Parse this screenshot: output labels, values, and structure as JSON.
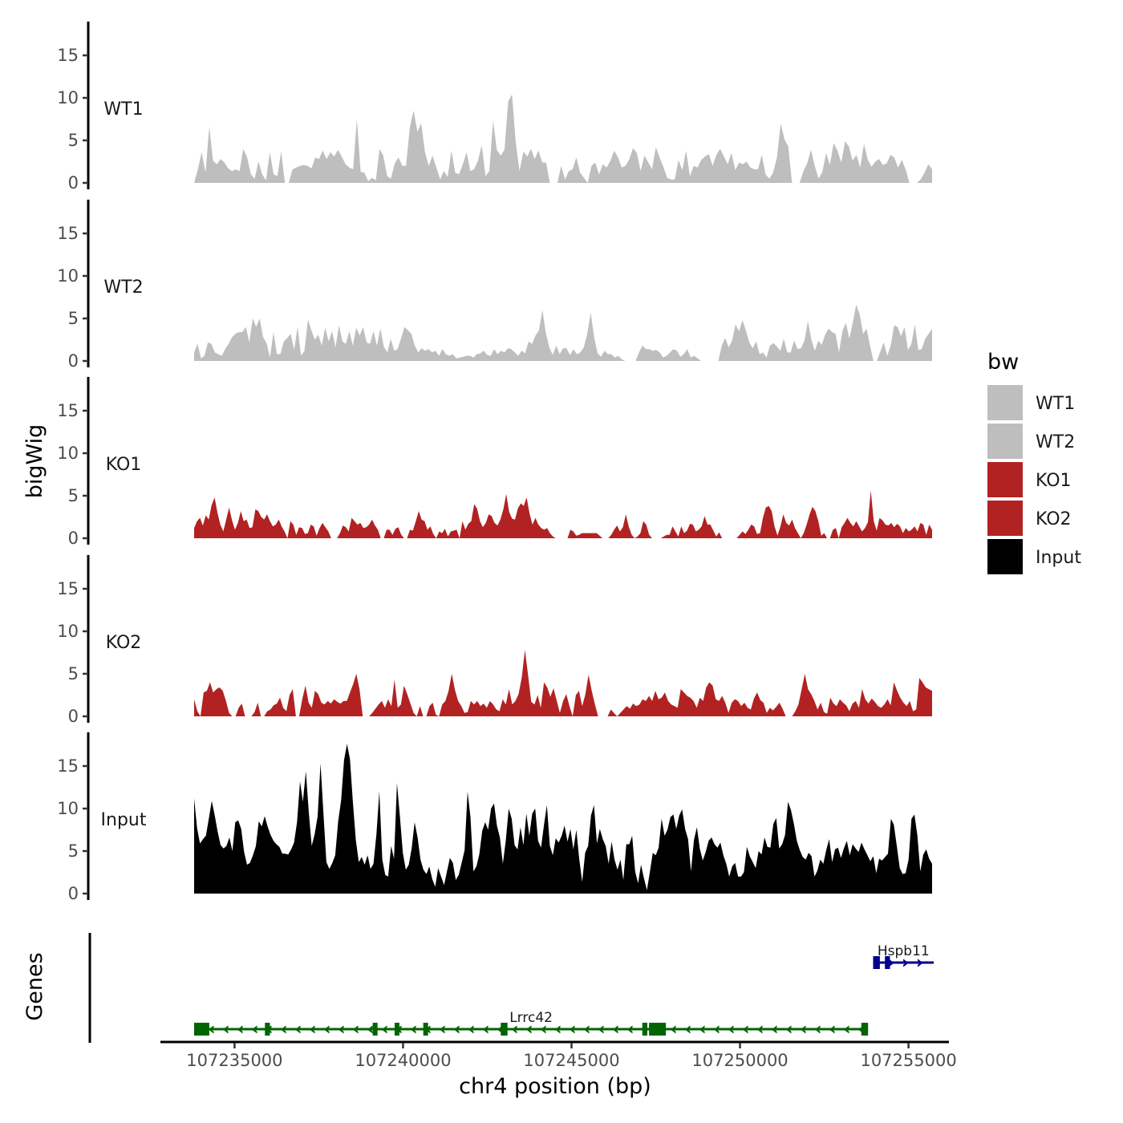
{
  "chart_data": {
    "type": "area",
    "title": "",
    "ylabel": "bigWig",
    "genes_label": "Genes",
    "xlabel": "chr4 position (bp)",
    "xlim": [
      107232800,
      107256200
    ],
    "ylim": [
      0,
      18.5
    ],
    "y_ticks": [
      0,
      5,
      10,
      15
    ],
    "x_ticks": [
      107235000,
      107240000,
      107245000,
      107250000,
      107255000
    ],
    "x_tick_labels": [
      "107235000",
      "107240000",
      "107245000",
      "107250000",
      "107255000"
    ],
    "data_range": [
      107233800,
      107255700
    ],
    "legend": {
      "title": "bw",
      "position": "right",
      "entries": [
        {
          "label": "WT1",
          "color": "#bebebe"
        },
        {
          "label": "WT2",
          "color": "#bebebe"
        },
        {
          "label": "KO1",
          "color": "#b22222"
        },
        {
          "label": "KO2",
          "color": "#b22222"
        },
        {
          "label": "Input",
          "color": "#000000"
        }
      ]
    },
    "series": [
      {
        "name": "WT1",
        "color": "#bebebe",
        "values": [
          0,
          1.6,
          3.6,
          1.2,
          6.6,
          2.6,
          2.2,
          2.8,
          2.4,
          1.7,
          1.4,
          1.6,
          1.4,
          4.0,
          3.0,
          1.0,
          0.5,
          2.5,
          1.0,
          0.3,
          3.6,
          1.0,
          0.8,
          3.7,
          0,
          0,
          1.6,
          1.8,
          2.0,
          2.1,
          2.0,
          1.7,
          3.0,
          2.8,
          3.8,
          2.8,
          3.6,
          3.1,
          3.9,
          3.1,
          2.2,
          1.8,
          1.6,
          7.5,
          1.3,
          1.2,
          0.2,
          0.6,
          0.3,
          4.0,
          3.2,
          0.8,
          0.5,
          2.3,
          3.0,
          2.0,
          2.0,
          6.5,
          8.5,
          6.0,
          7.0,
          3.6,
          2.0,
          3.2,
          1.8,
          0.4,
          1.4,
          0.7,
          3.8,
          1.2,
          1.0,
          2.2,
          3.6,
          1.4,
          1.6,
          2.6,
          4.4,
          0.8,
          1.4,
          7.3,
          3.9,
          3.2,
          3.9,
          9.6,
          10.4,
          4.7,
          1.4,
          3.7,
          3.1,
          4.0,
          2.8,
          3.8,
          2.4,
          2.4,
          0,
          0,
          0,
          2.0,
          0.4,
          1.4,
          1.6,
          3.0,
          1.2,
          0.6,
          0,
          2.0,
          2.4,
          1.0,
          2.2,
          1.8,
          2.6,
          3.8,
          3.0,
          1.8,
          2.0,
          2.8,
          4.1,
          3.5,
          1.4,
          3.2,
          2.4,
          1.6,
          4.2,
          3.0,
          1.9,
          0.6,
          0.4,
          0.4,
          2.7,
          1.5,
          3.8,
          0.8,
          2.0,
          1.8,
          2.7,
          3.1,
          3.4,
          2.0,
          3.3,
          4.0,
          3.1,
          2.2,
          3.5,
          1.5,
          2.4,
          2.2,
          2.5,
          1.8,
          1.6,
          1.6,
          3.3,
          1.0,
          0.5,
          1.2,
          3.0,
          7.0,
          5.1,
          4.3,
          0,
          0,
          0,
          1.4,
          2.3,
          3.9,
          2.0,
          0.5,
          1.3,
          3.5,
          2.1,
          4.7,
          3.8,
          2.4,
          4.9,
          4.3,
          2.6,
          3.3,
          1.8,
          4.6,
          2.7,
          1.9,
          2.5,
          2.8,
          2.1,
          2.3,
          3.3,
          3.0,
          1.8,
          2.7,
          1.6,
          0,
          0,
          0,
          0.4,
          1.2,
          2.2,
          1.6
        ]
      },
      {
        "name": "WT2",
        "color": "#bebebe",
        "values": [
          1.0,
          2.0,
          0.3,
          0.6,
          2.2,
          2.0,
          1.0,
          0.8,
          0.6,
          1.4,
          2.0,
          2.8,
          3.2,
          3.4,
          3.4,
          4.0,
          2.2,
          5.0,
          4.0,
          5.0,
          2.8,
          2.1,
          0.4,
          3.4,
          0.8,
          0.8,
          2.3,
          2.7,
          3.2,
          1.3,
          4.0,
          0.6,
          1.2,
          4.9,
          3.6,
          2.5,
          3.1,
          1.8,
          3.9,
          2.3,
          3.5,
          1.6,
          4.2,
          2.3,
          2.0,
          3.5,
          1.8,
          3.9,
          3.0,
          4.0,
          2.2,
          2.0,
          3.5,
          1.8,
          3.8,
          1.7,
          1.0,
          2.6,
          1.2,
          1.4,
          2.6,
          4.0,
          3.6,
          3.2,
          1.8,
          1.0,
          1.5,
          1.2,
          1.4,
          1.0,
          1.2,
          0.6,
          1.4,
          0.8,
          0.6,
          0.8,
          0.3,
          0.4,
          0.5,
          0.6,
          0.6,
          0.4,
          0.8,
          0.9,
          1.2,
          0.7,
          0.6,
          1.4,
          0.8,
          1.2,
          1.0,
          1.5,
          1.4,
          1.0,
          0.6,
          1.2,
          0.9,
          2.3,
          2.0,
          3.0,
          3.6,
          6.0,
          3.3,
          1.6,
          0.7,
          1.8,
          0.8,
          1.5,
          1.5,
          0.7,
          1.4,
          0.8,
          1.0,
          1.6,
          3.2,
          5.7,
          2.8,
          0.9,
          0.5,
          1.2,
          0.8,
          0.8,
          0.4,
          0.6,
          0.2,
          0,
          0,
          0,
          0,
          1.0,
          1.8,
          1.4,
          1.4,
          1.2,
          1.3,
          1.0,
          0.4,
          0.6,
          1.0,
          1.4,
          1.2,
          0.5,
          0.8,
          1.4,
          0.4,
          0.6,
          0.3,
          0,
          0,
          0,
          0,
          0,
          0,
          1.8,
          2.7,
          1.6,
          2.4,
          4.3,
          3.5,
          4.8,
          3.6,
          2.2,
          1.5,
          2.3,
          0.8,
          1.0,
          0.4,
          1.8,
          2.1,
          1.7,
          1.2,
          2.6,
          1.0,
          1.0,
          2.4,
          1.4,
          1.5,
          2.4,
          4.7,
          2.5,
          1.2,
          2.4,
          1.9,
          3.1,
          3.8,
          3.4,
          3.2,
          1.0,
          3.5,
          4.5,
          2.6,
          4.5,
          6.6,
          5.5,
          3.2,
          3.8,
          1.8,
          0,
          0,
          1.1,
          2.2,
          0.6,
          1.8,
          4.2,
          4.0,
          2.9,
          4.0,
          1.3,
          2.0,
          4.3,
          1.3,
          1.4,
          2.6,
          3.2,
          3.8
        ]
      },
      {
        "name": "KO1",
        "color": "#b22222",
        "values": [
          1.2,
          2.0,
          2.4,
          1.5,
          2.7,
          2.2,
          3.9,
          4.8,
          3.0,
          1.6,
          0.8,
          2.2,
          3.6,
          2.1,
          1.0,
          1.8,
          3.2,
          2.0,
          2.2,
          1.2,
          1.3,
          3.4,
          3.2,
          2.5,
          2.2,
          2.8,
          2.0,
          1.4,
          1.6,
          2.2,
          1.4,
          0.8,
          0,
          2.0,
          1.6,
          0.4,
          1.3,
          1.2,
          0.5,
          0.6,
          1.6,
          1.4,
          0.3,
          1.2,
          1.8,
          1.3,
          0.8,
          0,
          0,
          0,
          0.6,
          1.5,
          1.3,
          0.8,
          2.4,
          2.0,
          1.6,
          1.8,
          1.2,
          1.3,
          1.6,
          2.2,
          1.5,
          1.0,
          0,
          0,
          1.0,
          1.0,
          0.4,
          1.1,
          1.3,
          0.4,
          0,
          0,
          1.0,
          0.9,
          2.0,
          3.2,
          2.2,
          2.0,
          1.0,
          1.4,
          0.5,
          0,
          0.8,
          0.6,
          1.1,
          0.2,
          0.8,
          0.9,
          1.0,
          0,
          2.0,
          1.0,
          1.7,
          2.0,
          4.0,
          3.5,
          2.0,
          1.3,
          1.8,
          2.8,
          2.6,
          1.8,
          1.5,
          2.2,
          3.4,
          5.2,
          3.1,
          2.3,
          2.2,
          3.5,
          4.1,
          3.8,
          4.8,
          2.9,
          1.6,
          2.4,
          1.6,
          1.2,
          1.0,
          1.2,
          0.6,
          0.2,
          0,
          0,
          0,
          0,
          0,
          1.0,
          0.8,
          0.3,
          0.4,
          0.6,
          0.6,
          0.6,
          0.6,
          0.6,
          0.6,
          0.3,
          0,
          0,
          0,
          0.4,
          1.0,
          1.5,
          0.8,
          1.3,
          2.8,
          1.4,
          0.4,
          0,
          0.2,
          0.6,
          2.0,
          1.6,
          0.4,
          0,
          0,
          0,
          0,
          0.2,
          0.4,
          0.4,
          1.4,
          0.8,
          0.2,
          1.4,
          0.6,
          0.9,
          1.7,
          1.6,
          0.8,
          1.0,
          1.4,
          2.6,
          1.6,
          1.6,
          0.9,
          0.2,
          0.7,
          0,
          0,
          0,
          0,
          0,
          0,
          0.4,
          0.8,
          0.5,
          1.0,
          1.6,
          1.4,
          0.5,
          0.6,
          2.4,
          3.6,
          3.8,
          3.2,
          1.4,
          0.3,
          1.4,
          2.8,
          1.8,
          1.5,
          2.2,
          1.2,
          0.6,
          0,
          0.6,
          1.6,
          2.8,
          3.7,
          3.2,
          2.0,
          0.3,
          0.6,
          0,
          0,
          1.0,
          1.2,
          0,
          1.3,
          1.8,
          2.4,
          1.8,
          1.4,
          2.0,
          1.4,
          0.8,
          1.2,
          1.9,
          5.6,
          2.0,
          0.9,
          2.4,
          2.1,
          1.6,
          1.5,
          1.8,
          1.3,
          1.7,
          1.4,
          0.6,
          1.2,
          0.8,
          1.0,
          1.4,
          0.8,
          1.8,
          1.6,
          0.4,
          1.6,
          1.0
        ]
      },
      {
        "name": "KO2",
        "color": "#b22222",
        "values": [
          2.0,
          0.6,
          0,
          2.8,
          3.0,
          4.0,
          2.8,
          3.2,
          3.4,
          3.0,
          1.8,
          0.4,
          0,
          0,
          1.0,
          1.5,
          0,
          0,
          0,
          0.5,
          1.6,
          0,
          0,
          0.6,
          0.8,
          1.3,
          1.5,
          2.2,
          1.0,
          0.6,
          2.5,
          3.2,
          0,
          0,
          2.0,
          3.6,
          1.6,
          1.0,
          3.0,
          2.6,
          1.6,
          1.4,
          1.8,
          1.5,
          2.0,
          1.7,
          1.5,
          1.8,
          1.8,
          2.8,
          3.8,
          5.0,
          3.2,
          0,
          0,
          0,
          0.4,
          0.9,
          1.4,
          1.8,
          1.0,
          2.0,
          1.2,
          4.3,
          1.0,
          1.4,
          3.6,
          2.6,
          1.5,
          0.4,
          0,
          1.2,
          0,
          0,
          1.2,
          1.6,
          0.2,
          0,
          1.4,
          1.8,
          3.0,
          5.0,
          3.1,
          1.8,
          1.2,
          0.4,
          0.5,
          1.8,
          1.4,
          1.8,
          1.2,
          1.5,
          1.0,
          1.8,
          1.4,
          0.8,
          0.6,
          2.0,
          1.4,
          3.2,
          1.4,
          1.8,
          2.6,
          4.6,
          7.8,
          4.8,
          1.7,
          1.4,
          2.5,
          1.0,
          4.0,
          3.4,
          2.3,
          3.3,
          1.8,
          0.4,
          1.8,
          2.6,
          1.2,
          0,
          2.5,
          3.0,
          1.2,
          2.6,
          4.9,
          3.0,
          1.4,
          0,
          0,
          0,
          0,
          0.8,
          0.4,
          0,
          0.4,
          0.8,
          1.2,
          0.9,
          1.5,
          1.2,
          1.4,
          2.0,
          1.8,
          2.4,
          1.8,
          3.0,
          2.0,
          2.2,
          2.8,
          1.8,
          1.4,
          1.2,
          1.0,
          3.2,
          2.8,
          2.4,
          2.2,
          1.8,
          1.0,
          2.2,
          1.8,
          3.4,
          4.0,
          3.6,
          2.0,
          1.8,
          2.4,
          1.6,
          0.4,
          1.6,
          2.0,
          1.8,
          1.2,
          1.6,
          1.0,
          0.8,
          2.1,
          2.8,
          1.9,
          1.6,
          0.4,
          1.0,
          0.7,
          1.1,
          1.6,
          0.9,
          0,
          0,
          0,
          0.6,
          1.4,
          3.2,
          5.0,
          3.2,
          2.6,
          1.8,
          0.8,
          1.6,
          0.5,
          0.3,
          2.2,
          1.5,
          1.2,
          2.0,
          1.6,
          1.3,
          0.6,
          1.5,
          1.8,
          1.0,
          3.2,
          2.0,
          1.5,
          2.1,
          1.7,
          1.2,
          1.0,
          1.4,
          2.0,
          1.3,
          4.0,
          3.0,
          2.2,
          1.6,
          1.2,
          1.8,
          0.6,
          0.8,
          4.5,
          4.0,
          3.4,
          3.2,
          3.0
        ]
      },
      {
        "name": "Input",
        "color": "#000000",
        "values": [
          11.2,
          7.7,
          5.9,
          6.4,
          6.8,
          8.8,
          10.9,
          9.2,
          7.3,
          5.7,
          5.3,
          5.6,
          6.6,
          5.0,
          8.4,
          8.6,
          7.6,
          4.9,
          3.4,
          3.6,
          4.5,
          5.6,
          8.5,
          7.9,
          9.1,
          7.9,
          6.9,
          6.2,
          5.8,
          5.5,
          4.7,
          4.7,
          4.6,
          5.2,
          6.0,
          8.4,
          13.2,
          10.8,
          14.4,
          9.5,
          5.6,
          7.0,
          9.1,
          15.3,
          9.3,
          3.7,
          2.9,
          3.6,
          4.5,
          8.5,
          11.0,
          15.7,
          17.6,
          15.8,
          10.8,
          6.3,
          3.7,
          4.3,
          3.4,
          4.5,
          2.9,
          3.5,
          7.0,
          12.0,
          4.0,
          2.2,
          2.0,
          5.6,
          4.1,
          13.0,
          9.0,
          4.8,
          2.8,
          3.4,
          5.3,
          8.4,
          6.6,
          4.0,
          2.8,
          2.3,
          3.2,
          1.7,
          0.8,
          3.0,
          2.0,
          1.0,
          2.6,
          4.2,
          3.6,
          1.6,
          2.2,
          3.6,
          5.1,
          12.0,
          9.0,
          2.6,
          3.2,
          4.6,
          7.4,
          8.4,
          7.5,
          10.0,
          10.6,
          8.0,
          6.6,
          3.5,
          6.2,
          10.0,
          8.8,
          5.7,
          5.2,
          7.8,
          5.7,
          9.4,
          6.8,
          9.4,
          10.0,
          6.2,
          5.4,
          8.1,
          10.4,
          5.6,
          4.5,
          6.5,
          6.0,
          6.8,
          8.0,
          6.1,
          7.6,
          5.2,
          7.5,
          4.0,
          1.4,
          4.8,
          5.6,
          9.2,
          10.4,
          5.9,
          7.6,
          6.4,
          5.6,
          3.5,
          6.1,
          4.0,
          2.8,
          4.0,
          1.6,
          5.8,
          5.8,
          6.8,
          2.6,
          1.2,
          3.4,
          1.8,
          0.4,
          2.5,
          4.8,
          4.5,
          5.4,
          8.8,
          6.8,
          7.5,
          9.0,
          9.3,
          7.6,
          9.2,
          9.9,
          7.6,
          6.4,
          2.6,
          6.3,
          7.8,
          5.3,
          3.9,
          4.9,
          6.2,
          6.6,
          5.8,
          5.4,
          6.0,
          4.5,
          3.5,
          2.0,
          3.2,
          3.6,
          2.0,
          2.0,
          2.5,
          5.5,
          4.4,
          3.7,
          3.0,
          5.0,
          4.6,
          6.6,
          5.5,
          5.4,
          8.2,
          8.9,
          5.3,
          5.8,
          6.9,
          10.8,
          9.8,
          8.2,
          6.2,
          5.1,
          4.3,
          4.0,
          4.8,
          4.4,
          2.0,
          2.7,
          4.0,
          3.5,
          5.1,
          6.4,
          3.7,
          5.2,
          5.4,
          4.2,
          5.3,
          6.2,
          4.5,
          5.8,
          5.3,
          4.9,
          6.0,
          5.2,
          4.5,
          3.8,
          4.4,
          2.4,
          4.1,
          3.9,
          4.3,
          4.7,
          8.8,
          8.1,
          5.6,
          3.0,
          2.3,
          2.4,
          4.0,
          8.8,
          9.3,
          6.8,
          2.6,
          4.6,
          5.2,
          4.1,
          3.5
        ]
      }
    ],
    "genes": [
      {
        "name": "Lrrc42",
        "strand": "-",
        "color": "#006400",
        "start": 107233800,
        "end": 107253800,
        "arrow_glyph": "‹",
        "exons": [
          [
            107233800,
            107234250
          ],
          [
            107235900,
            107236050
          ],
          [
            107239100,
            107239200
          ],
          [
            107239750,
            107239850
          ],
          [
            107240600,
            107240700
          ],
          [
            107242900,
            107243100
          ],
          [
            107247100,
            107247250
          ],
          [
            107247300,
            107247800
          ],
          [
            107253600,
            107253800
          ]
        ]
      },
      {
        "name": "Hspb11",
        "strand": "+",
        "color": "#00008b",
        "start": 107253950,
        "end": 107255750,
        "arrow_glyph": "›",
        "exons": [
          [
            107253950,
            107254150
          ],
          [
            107254300,
            107254450
          ]
        ]
      }
    ]
  }
}
